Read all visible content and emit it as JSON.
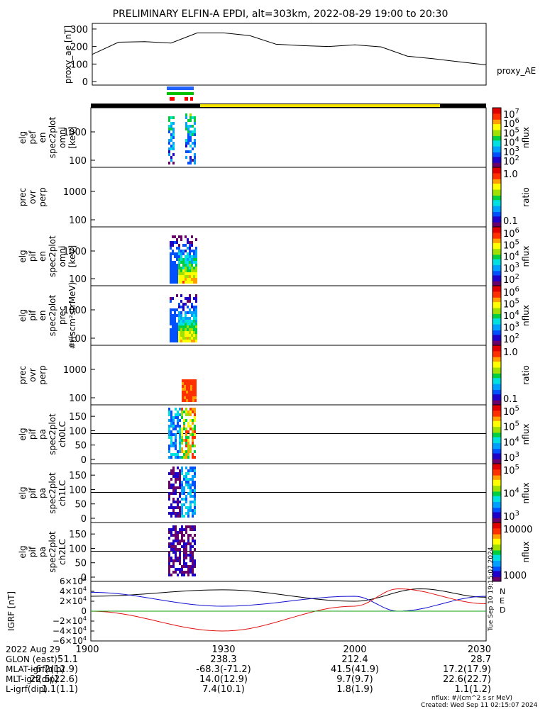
{
  "title": "PRELIMINARY ELFIN-A EPDI, alt=303km, 2022-08-29 19:00 to 20:30",
  "chart_data": [
    {
      "type": "line",
      "panel": "proxy_ae",
      "ylabel": "proxy_ae [nT]",
      "series_label": "proxy_AE",
      "yticks": [
        "300",
        "200",
        "100",
        "0"
      ],
      "ylim": [
        0,
        320
      ],
      "x_min": [
        0,
        6,
        12,
        18,
        24,
        30,
        36,
        42,
        48,
        54,
        60,
        66,
        72,
        78,
        84,
        90
      ],
      "y": [
        155,
        225,
        228,
        220,
        278,
        278,
        262,
        213,
        205,
        200,
        210,
        198,
        145,
        130,
        112,
        95
      ]
    },
    {
      "type": "heatmap",
      "panel": "elf_pef_en_spec2plot_omni",
      "ylabel": [
        "elg",
        "pef",
        "en",
        "spec2plot",
        "omni",
        "[keV]"
      ],
      "yticks": [
        "1000",
        "100"
      ],
      "colorbar": {
        "ticks": [
          "10",
          "10",
          "10",
          "10",
          "10",
          "10"
        ],
        "exps": [
          "7",
          "6",
          "5",
          "4",
          "3",
          "2"
        ],
        "label": "nflux"
      }
    },
    {
      "type": "heatmap",
      "panel": "prec_ovr_perp_1",
      "ylabel": [
        "prec",
        "ovr",
        "perp"
      ],
      "yticks": [
        "1000",
        "100"
      ],
      "colorbar": {
        "ticks": [
          "1.0",
          "0.1"
        ],
        "label": "ratio"
      }
    },
    {
      "type": "heatmap",
      "panel": "elg_pif_en_spec2plot_omni",
      "ylabel": [
        "elg",
        "pif",
        "en",
        "spec2plot",
        "omni",
        "[keV]"
      ],
      "yticks": [
        "1000",
        "100"
      ],
      "colorbar": {
        "ticks": [
          "10",
          "10",
          "10",
          "10",
          "10"
        ],
        "exps": [
          "6",
          "5",
          "4",
          "3",
          "2"
        ],
        "label": "nflux"
      }
    },
    {
      "type": "heatmap",
      "panel": "elg_pif_en_spec2plot_prec",
      "ylabel": [
        "elg",
        "pif",
        "en",
        "spec2plot",
        "prec",
        "#/(scm²strMeV)"
      ],
      "yticks": [
        "1000",
        "100"
      ],
      "colorbar": {
        "ticks": [
          "10",
          "10",
          "10",
          "10",
          "10"
        ],
        "exps": [
          "6",
          "5",
          "4",
          "3",
          "2"
        ],
        "label": "nflux"
      }
    },
    {
      "type": "heatmap",
      "panel": "prec_ovr_perp_2",
      "ylabel": [
        "prec",
        "ovr",
        "perp"
      ],
      "yticks": [
        "1000",
        "100"
      ],
      "colorbar": {
        "ticks": [
          "1.0",
          "0.1"
        ],
        "label": "ratio"
      }
    },
    {
      "type": "heatmap",
      "panel": "elg_pif_pa_spec2plot_ch0LC",
      "ylabel": [
        "elg",
        "pif",
        "pa",
        "spec2plot",
        "ch0LC"
      ],
      "yticks": [
        "150",
        "100",
        "50",
        "0"
      ],
      "colorbar": {
        "ticks": [
          "10",
          "10",
          "10",
          "10"
        ],
        "exps": [
          "5",
          "5",
          "4",
          "3"
        ],
        "label": "nflux"
      }
    },
    {
      "type": "heatmap",
      "panel": "elg_pif_pa_spec2plot_ch1LC",
      "ylabel": [
        "elg",
        "pif",
        "pa",
        "spec2plot",
        "ch1LC"
      ],
      "yticks": [
        "150",
        "100",
        "50",
        "0"
      ],
      "colorbar": {
        "ticks": [
          "10",
          "10",
          "10"
        ],
        "exps": [
          "5",
          "4",
          "3"
        ],
        "label": "nflux"
      }
    },
    {
      "type": "heatmap",
      "panel": "elg_pif_pa_spec2plot_ch2LC",
      "ylabel": [
        "elg",
        "pif",
        "pa",
        "spec2plot",
        "ch2LC"
      ],
      "yticks": [
        "150",
        "100",
        "50",
        "0"
      ],
      "colorbar": {
        "ticks": [
          "10000",
          "1000"
        ],
        "label": "nflux"
      }
    },
    {
      "type": "line",
      "panel": "IGRF",
      "ylabel": "IGRF [nT]",
      "yticks": [
        {
          "m": "6",
          "e": "4"
        },
        {
          "m": "4",
          "e": "4"
        },
        {
          "m": "2",
          "e": "4"
        },
        {
          "m": "0",
          "e": ""
        },
        {
          "m": "−2",
          "e": "4"
        },
        {
          "m": "−4",
          "e": "4"
        },
        {
          "m": "−6",
          "e": "4"
        }
      ],
      "ylim": [
        -60000,
        60000
      ],
      "legend": [
        "N",
        "E",
        "D"
      ],
      "series": [
        {
          "name": "N",
          "color": "#000000",
          "x_min": [
            0,
            30,
            60,
            75,
            90
          ],
          "y": [
            30000,
            43000,
            20000,
            45000,
            28000
          ]
        },
        {
          "name": "E",
          "color": "#1010d0",
          "x_min": [
            0,
            30,
            60,
            70,
            90
          ],
          "y": [
            38000,
            10000,
            30000,
            0,
            30000
          ]
        },
        {
          "name": "D",
          "color": "#e01010",
          "x_min": [
            0,
            30,
            60,
            70,
            90
          ],
          "y": [
            0,
            -40000,
            10000,
            45000,
            15000
          ]
        },
        {
          "name": "",
          "color": "#10a010",
          "x_min": [
            0,
            30,
            60,
            90
          ],
          "y": [
            0,
            0,
            0,
            0
          ]
        }
      ]
    }
  ],
  "time_axis": {
    "row_labels": [
      "2022 Aug 29",
      "GLON (east)",
      "MLAT-igrf(dip)",
      "MLT-igrf(dip)",
      "L-igrf(dip)"
    ],
    "columns": [
      {
        "values": [
          "1900",
          "51.1",
          "-6.2(12.9)",
          "22.5(22.6)",
          "1.1(1.1)"
        ]
      },
      {
        "values": [
          "1930",
          "238.3",
          "-68.3(-71.2)",
          "14.0(12.9)",
          "7.4(10.1)"
        ]
      },
      {
        "values": [
          "2000",
          "212.4",
          "41.5(41.9)",
          "9.7(9.7)",
          "1.8(1.9)"
        ]
      },
      {
        "values": [
          "2030",
          "28.7",
          "17.2(17.9)",
          "22.6(22.7)",
          "1.1(1.2)"
        ]
      }
    ]
  },
  "footer": {
    "units": "nflux: #/(cm^2 s sr MeV)",
    "created": "Created: Wed Sep 11 02:15:07 2024"
  },
  "side_stamp": "Tue Sep 10 19:15:07 2024",
  "colors": {
    "yellow_bar": "#f5e000",
    "black_bar": "#000000",
    "blue_bar": "#2060ff",
    "green_bar": "#00c000",
    "red_bar": "#ff0000"
  }
}
